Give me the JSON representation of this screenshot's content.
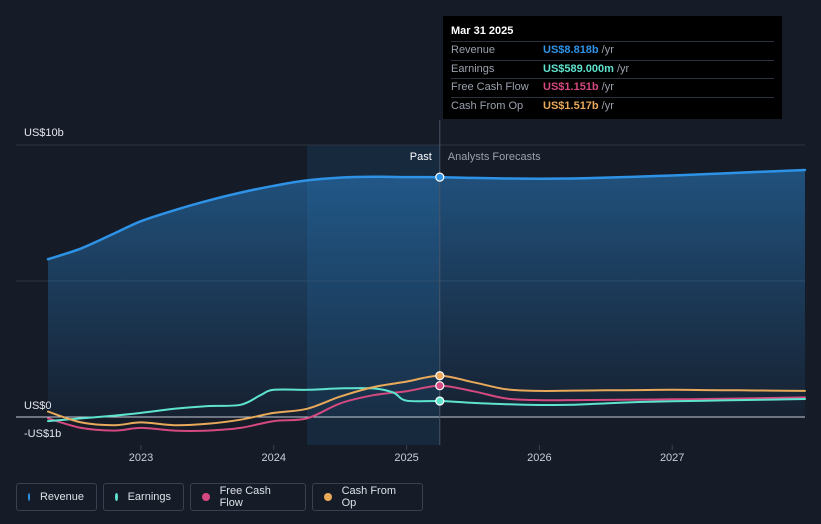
{
  "colors": {
    "revenue": "#2e93e6",
    "earnings": "#5ee3cf",
    "free_cash_flow": "#d4497f",
    "cash_from_op": "#e8a95a",
    "background": "#151b27"
  },
  "tooltip": {
    "date": "Mar 31 2025",
    "rows": [
      {
        "name": "Revenue",
        "value": "US$8.818b",
        "unit": "/yr",
        "color": "#2e93e6"
      },
      {
        "name": "Earnings",
        "value": "US$589.000m",
        "unit": "/yr",
        "color": "#5ee3cf"
      },
      {
        "name": "Free Cash Flow",
        "value": "US$1.151b",
        "unit": "/yr",
        "color": "#d4497f"
      },
      {
        "name": "Cash From Op",
        "value": "US$1.517b",
        "unit": "/yr",
        "color": "#e8a95a"
      }
    ]
  },
  "legend": [
    {
      "label": "Revenue",
      "color": "#2e93e6"
    },
    {
      "label": "Earnings",
      "color": "#5ee3cf"
    },
    {
      "label": "Free Cash Flow",
      "color": "#d4497f"
    },
    {
      "label": "Cash From Op",
      "color": "#e8a95a"
    }
  ],
  "chart_data": {
    "type": "line",
    "title": "",
    "xlabel": "",
    "ylabel": "",
    "unit": "US$ billions",
    "xlim": [
      2022.3,
      2028.0
    ],
    "ylim": [
      -1,
      10
    ],
    "y_tick_labels": [
      {
        "value": 10,
        "label": "US$10b"
      },
      {
        "value": 0,
        "label": "US$0"
      },
      {
        "value": -1,
        "label": "-US$1b"
      }
    ],
    "x_tick_labels": [
      {
        "value": 2023,
        "label": "2023"
      },
      {
        "value": 2024,
        "label": "2024"
      },
      {
        "value": 2025,
        "label": "2025"
      },
      {
        "value": 2026,
        "label": "2026"
      },
      {
        "value": 2027,
        "label": "2027"
      }
    ],
    "gridlines_y": [
      10,
      5,
      0
    ],
    "past_label": "Past",
    "forecast_label": "Analysts Forecasts",
    "divider_x": 2025.25,
    "highlight_range": [
      2024.25,
      2025.25
    ],
    "series": [
      {
        "name": "Revenue",
        "key": "revenue",
        "x": [
          2022.3,
          2022.55,
          2022.8,
          2023.0,
          2023.25,
          2023.5,
          2023.75,
          2024.0,
          2024.25,
          2024.5,
          2024.75,
          2025.0,
          2025.25,
          2025.5,
          2025.75,
          2026.0,
          2026.25,
          2026.5,
          2026.75,
          2027.0,
          2027.25,
          2027.5,
          2027.75,
          2028.0
        ],
        "values": [
          5.8,
          6.2,
          6.75,
          7.2,
          7.6,
          7.95,
          8.25,
          8.5,
          8.7,
          8.8,
          8.83,
          8.82,
          8.818,
          8.79,
          8.77,
          8.76,
          8.77,
          8.8,
          8.84,
          8.88,
          8.93,
          8.98,
          9.03,
          9.08
        ]
      },
      {
        "name": "Earnings",
        "key": "earnings",
        "x": [
          2022.3,
          2022.55,
          2022.8,
          2023.0,
          2023.25,
          2023.5,
          2023.75,
          2023.9,
          2024.0,
          2024.25,
          2024.5,
          2024.75,
          2024.9,
          2025.0,
          2025.25,
          2025.5,
          2025.75,
          2026.0,
          2026.25,
          2026.5,
          2026.75,
          2027.0,
          2027.25,
          2027.5,
          2027.75,
          2028.0
        ],
        "values": [
          -0.15,
          -0.05,
          0.05,
          0.15,
          0.3,
          0.4,
          0.45,
          0.8,
          1.0,
          1.0,
          1.05,
          1.05,
          0.9,
          0.6,
          0.589,
          0.52,
          0.47,
          0.44,
          0.45,
          0.5,
          0.55,
          0.58,
          0.6,
          0.62,
          0.64,
          0.66
        ]
      },
      {
        "name": "Free Cash Flow",
        "key": "free_cash_flow",
        "x": [
          2022.3,
          2022.55,
          2022.8,
          2023.0,
          2023.25,
          2023.5,
          2023.75,
          2024.0,
          2024.25,
          2024.5,
          2024.75,
          2025.0,
          2025.25,
          2025.5,
          2025.75,
          2026.0,
          2026.25,
          2026.5,
          2026.75,
          2027.0,
          2027.25,
          2027.5,
          2027.75,
          2028.0
        ],
        "values": [
          -0.05,
          -0.4,
          -0.5,
          -0.4,
          -0.5,
          -0.5,
          -0.4,
          -0.15,
          -0.05,
          0.5,
          0.8,
          0.95,
          1.151,
          0.95,
          0.68,
          0.62,
          0.62,
          0.63,
          0.64,
          0.65,
          0.66,
          0.68,
          0.7,
          0.72
        ]
      },
      {
        "name": "Cash From Op",
        "key": "cash_from_op",
        "x": [
          2022.3,
          2022.55,
          2022.8,
          2023.0,
          2023.25,
          2023.5,
          2023.75,
          2024.0,
          2024.25,
          2024.5,
          2024.75,
          2025.0,
          2025.25,
          2025.5,
          2025.75,
          2026.0,
          2026.25,
          2026.5,
          2026.75,
          2027.0,
          2027.25,
          2027.5,
          2027.75,
          2028.0
        ],
        "values": [
          0.2,
          -0.2,
          -0.3,
          -0.2,
          -0.3,
          -0.25,
          -0.1,
          0.15,
          0.3,
          0.75,
          1.1,
          1.3,
          1.517,
          1.28,
          1.02,
          0.96,
          0.97,
          0.98,
          0.99,
          1.0,
          0.99,
          0.98,
          0.97,
          0.96
        ]
      }
    ],
    "markers": [
      {
        "series": "revenue",
        "x": 2025.25,
        "y": 8.818
      },
      {
        "series": "cash_from_op",
        "x": 2025.25,
        "y": 1.517
      },
      {
        "series": "free_cash_flow",
        "x": 2025.25,
        "y": 1.151
      },
      {
        "series": "earnings",
        "x": 2025.25,
        "y": 0.589
      }
    ]
  }
}
